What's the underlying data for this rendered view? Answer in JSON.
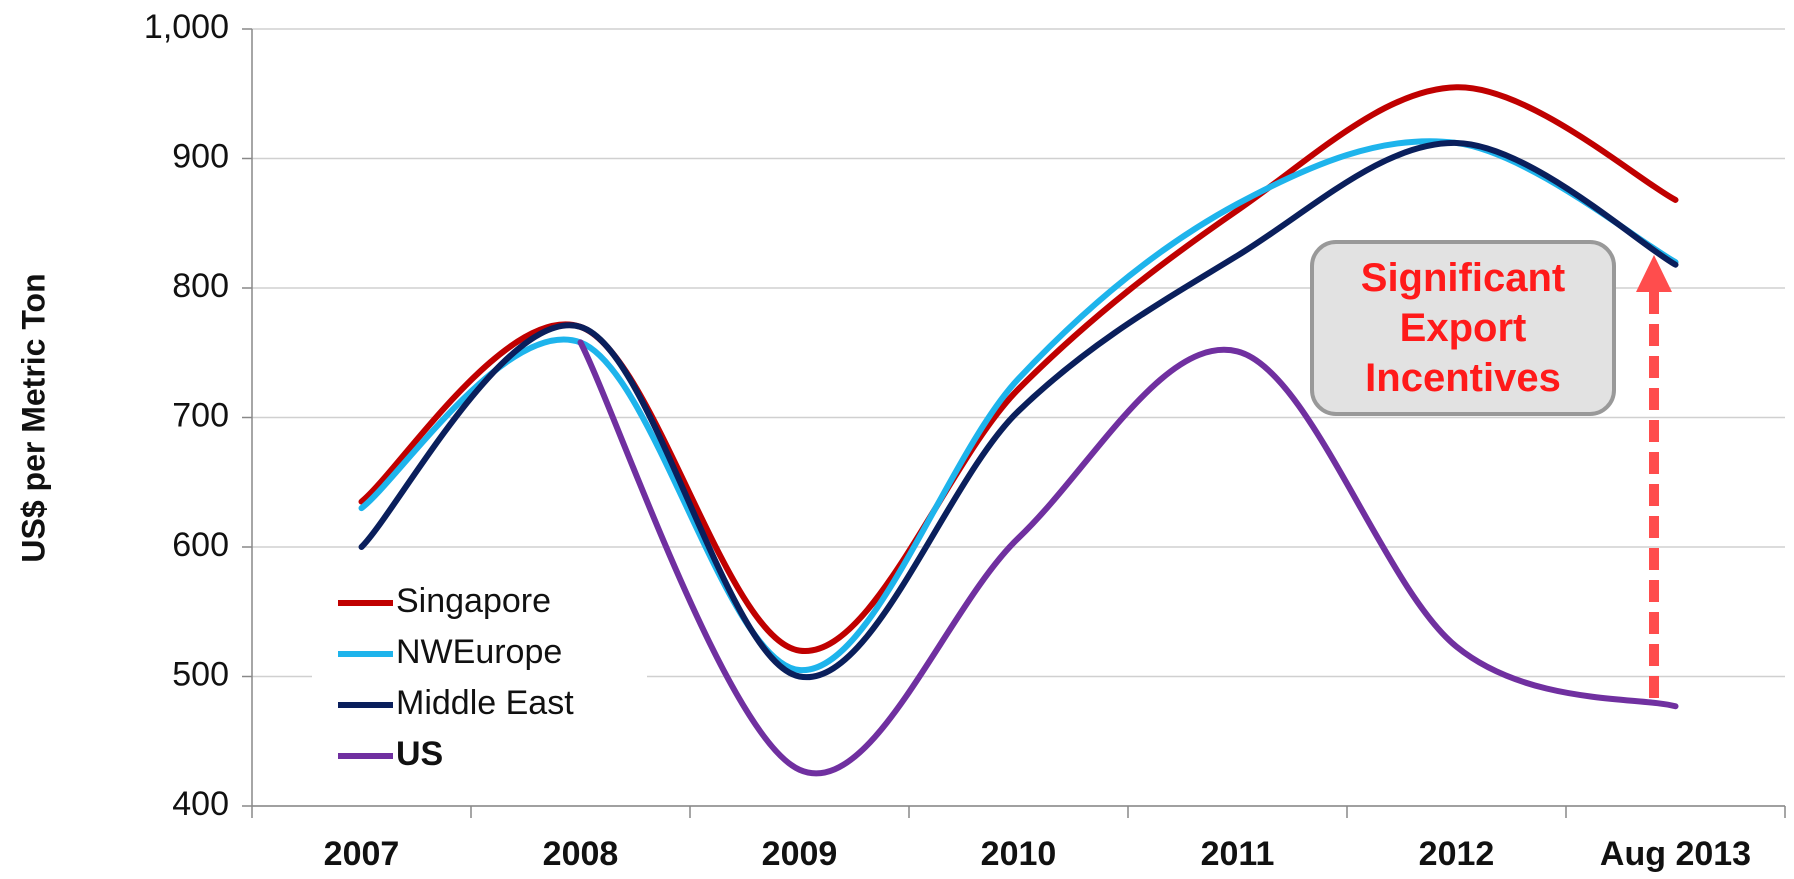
{
  "chart_data": {
    "type": "line",
    "ylabel": "US$ per Metric Ton",
    "categories": [
      "2007",
      "2008",
      "2009",
      "2010",
      "2011",
      "2012",
      "Aug 2013"
    ],
    "series": [
      {
        "name": "Singapore",
        "color": "#c00000",
        "values": [
          635,
          770,
          520,
          722,
          860,
          955,
          868
        ]
      },
      {
        "name": "NWEurope",
        "color": "#1eb4ec",
        "values": [
          630,
          758,
          505,
          730,
          865,
          912,
          820
        ]
      },
      {
        "name": "Middle East",
        "color": "#0a1f5c",
        "values": [
          600,
          770,
          500,
          705,
          825,
          912,
          818
        ]
      },
      {
        "name": "US",
        "color": "#7030a0",
        "values": [
          null,
          758,
          428,
          607,
          751,
          523,
          477
        ]
      }
    ],
    "ylim": [
      400,
      1000
    ],
    "yticks": [
      400,
      500,
      600,
      700,
      800,
      900,
      {
        "value": 1000,
        "label": "1,000"
      }
    ],
    "grid": true,
    "annotation": "Significant Export Incentives"
  }
}
